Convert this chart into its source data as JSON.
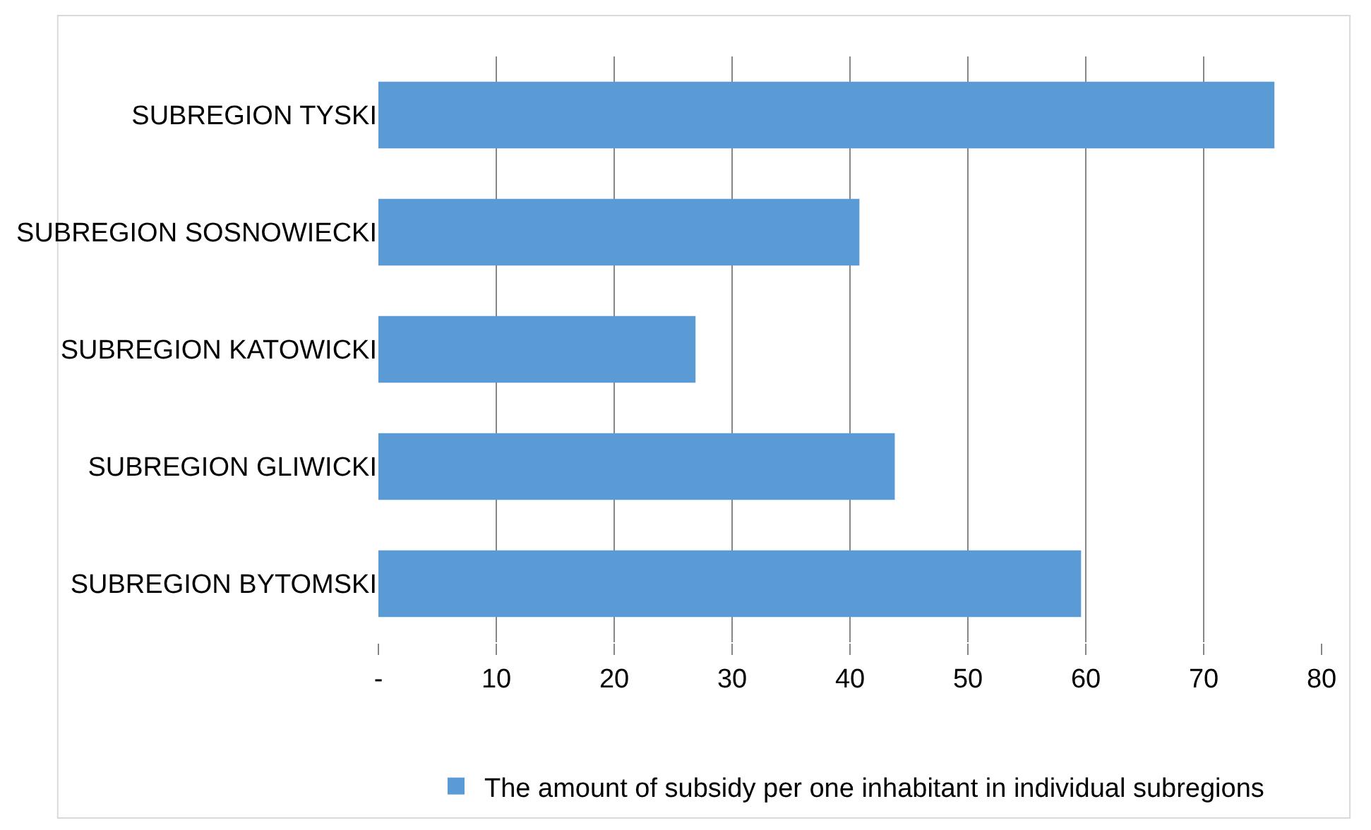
{
  "chart_data": {
    "type": "bar",
    "orientation": "horizontal",
    "categories": [
      "SUBREGION TYSKI",
      "SUBREGION SOSNOWIECKI",
      "SUBREGION KATOWICKI",
      "SUBREGION GLIWICKI",
      "SUBREGION BYTOMSKI"
    ],
    "series": [
      {
        "name": "The amount of subsidy per one inhabitant in individual subregions",
        "color": "#5b9bd5",
        "values": [
          76.0,
          40.8,
          26.9,
          43.8,
          59.6
        ]
      }
    ],
    "xlim": [
      0,
      80
    ],
    "xticks": [
      {
        "value": 0,
        "label": "-"
      },
      10,
      20,
      30,
      40,
      50,
      60,
      70,
      80
    ],
    "grid": "x",
    "legend": "bottom"
  }
}
